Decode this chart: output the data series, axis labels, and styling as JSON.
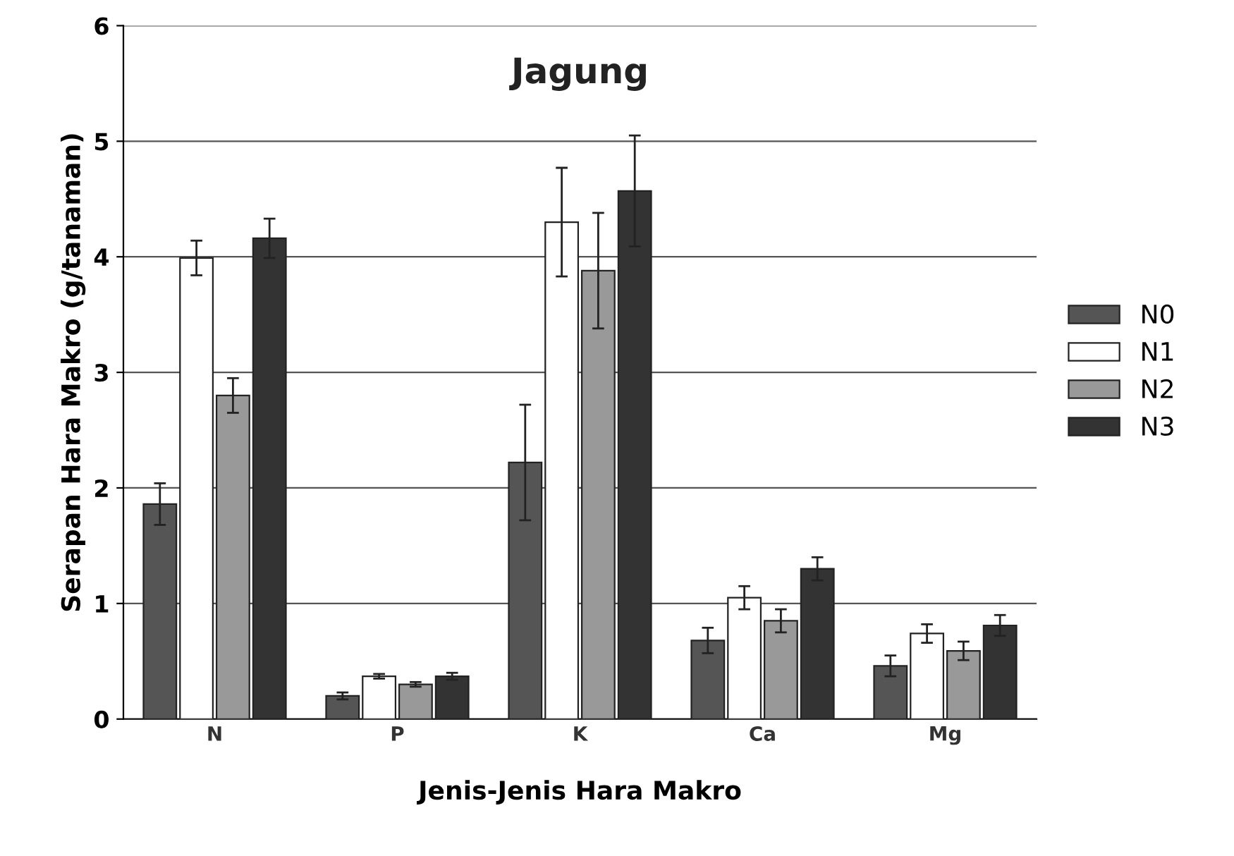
{
  "chart_data": {
    "type": "bar",
    "title": "Jagung",
    "xlabel": "Jenis-Jenis Hara Makro",
    "ylabel": "Serapan Hara Makro (g/tanaman)",
    "categories": [
      "N",
      "P",
      "K",
      "Ca",
      "Mg"
    ],
    "series": [
      {
        "name": "N0",
        "color": "#555555",
        "values": [
          1.86,
          0.2,
          2.22,
          0.68,
          0.46
        ],
        "errors": [
          0.18,
          0.03,
          0.5,
          0.11,
          0.09
        ]
      },
      {
        "name": "N1",
        "color": "#ffffff",
        "values": [
          3.99,
          0.37,
          4.3,
          1.05,
          0.74
        ],
        "errors": [
          0.15,
          0.02,
          0.47,
          0.1,
          0.08
        ]
      },
      {
        "name": "N2",
        "color": "#999999",
        "values": [
          2.8,
          0.3,
          3.88,
          0.85,
          0.59
        ],
        "errors": [
          0.15,
          0.02,
          0.5,
          0.1,
          0.08
        ]
      },
      {
        "name": "N3",
        "color": "#333333",
        "values": [
          4.16,
          0.37,
          4.57,
          1.3,
          0.81
        ],
        "errors": [
          0.17,
          0.03,
          0.48,
          0.1,
          0.09
        ]
      }
    ],
    "ylim": [
      0,
      6
    ],
    "yticks": [
      0,
      1,
      2,
      3,
      4,
      5,
      6
    ],
    "grid": "y",
    "legend": "right"
  }
}
